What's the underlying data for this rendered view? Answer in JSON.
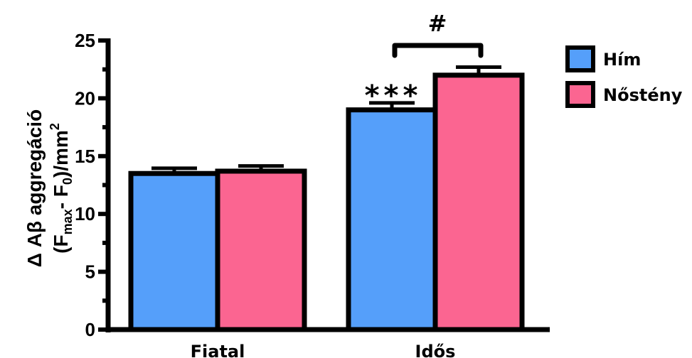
{
  "chart_data": {
    "type": "bar",
    "categories": [
      "Fiatal",
      "Idős"
    ],
    "series": [
      {
        "name": "Hím",
        "color": "#559ffa",
        "values": [
          13.5,
          19.0
        ],
        "errors": [
          0.45,
          0.6
        ]
      },
      {
        "name": "Nőstény",
        "color": "#fb6591",
        "values": [
          13.7,
          22.0
        ],
        "errors": [
          0.45,
          0.7
        ]
      }
    ],
    "ylim": [
      0,
      25
    ],
    "yticks": [
      "0",
      "5",
      "10",
      "15",
      "20",
      "25"
    ],
    "ylabel_line1": "Δ Aβ aggregáció",
    "ylabel_line2_a": "(F",
    "ylabel_line2_sub1": "max",
    "ylabel_line2_b": "- F",
    "ylabel_line2_sub2": "0",
    "ylabel_line2_c": ")/mm",
    "ylabel_line2_sup": "2",
    "legend_placement": "top-right",
    "annotations": {
      "stars": "***",
      "hash": "#"
    }
  }
}
